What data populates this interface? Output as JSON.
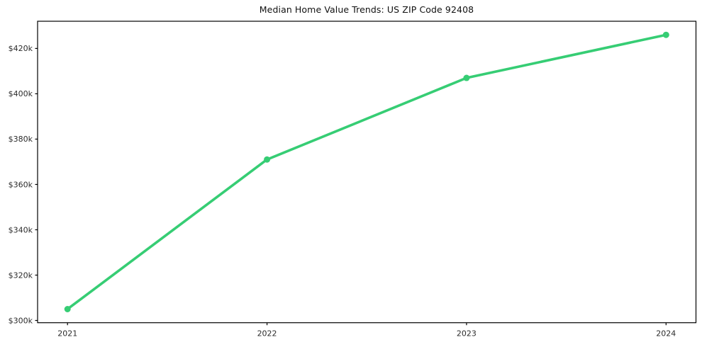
{
  "chart_data": {
    "type": "line",
    "title": "Median Home Value Trends: US ZIP Code 92408",
    "x": [
      2021,
      2022,
      2023,
      2024
    ],
    "series": [
      {
        "name": "Median Home Value",
        "values": [
          305000,
          371000,
          407000,
          426000
        ]
      }
    ],
    "xlabel": "",
    "ylabel": "",
    "xlim": [
      2020.85,
      2024.15
    ],
    "ylim": [
      299000,
      432000
    ],
    "xticks": {
      "values": [
        2021,
        2022,
        2023,
        2024
      ],
      "labels": [
        "2021",
        "2022",
        "2023",
        "2024"
      ]
    },
    "yticks": {
      "values": [
        300000,
        320000,
        340000,
        360000,
        380000,
        400000,
        420000
      ],
      "labels": [
        "$300k",
        "$320k",
        "$340k",
        "$360k",
        "$380k",
        "$400k",
        "$420k"
      ]
    },
    "grid": false,
    "legend": false,
    "line_color": "#36cd74",
    "marker": "circle",
    "marker_color": "#36cd74",
    "axis_color": "#000000",
    "tick_label_color": "#2b2b2b",
    "title_color": "#111111",
    "background_color": "#ffffff"
  }
}
